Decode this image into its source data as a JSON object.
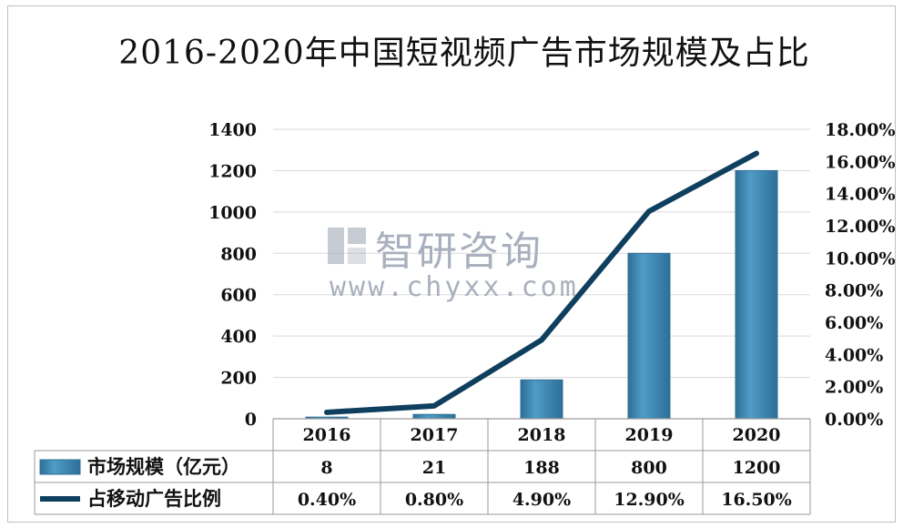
{
  "colors": {
    "bar": "#4f9cc7",
    "bar_dark": "#2d6f97",
    "line": "#0f3f5e",
    "grid": "#d9d9d9"
  },
  "watermark": {
    "brand_cn": "智研咨询",
    "url": "www.chyxx.com",
    "logo_icon": "chyxx-logo-icon"
  },
  "chart_data": {
    "type": "bar",
    "title": "2016-2020年中国短视频广告市场规模及占比",
    "categories": [
      "2016",
      "2017",
      "2018",
      "2019",
      "2020"
    ],
    "y_left": {
      "ticks": [
        "0",
        "200",
        "400",
        "600",
        "800",
        "1000",
        "1200",
        "1400"
      ],
      "ylim": [
        0,
        1400
      ]
    },
    "y_right": {
      "ticks": [
        "0.00%",
        "2.00%",
        "4.00%",
        "6.00%",
        "8.00%",
        "10.00%",
        "12.00%",
        "14.00%",
        "16.00%",
        "18.00%"
      ],
      "ylim": [
        0,
        18
      ]
    },
    "series": [
      {
        "name": "市场规模（亿元）",
        "type": "bar",
        "axis": "left",
        "values": [
          8,
          21,
          188,
          800,
          1200
        ],
        "labels": [
          "8",
          "21",
          "188",
          "800",
          "1200"
        ]
      },
      {
        "name": "占移动广告比例",
        "type": "line",
        "axis": "right",
        "values": [
          0.4,
          0.8,
          4.9,
          12.9,
          16.5
        ],
        "labels": [
          "0.40%",
          "0.80%",
          "4.90%",
          "12.90%",
          "16.50%"
        ]
      }
    ],
    "grid": true,
    "data_table": true
  }
}
